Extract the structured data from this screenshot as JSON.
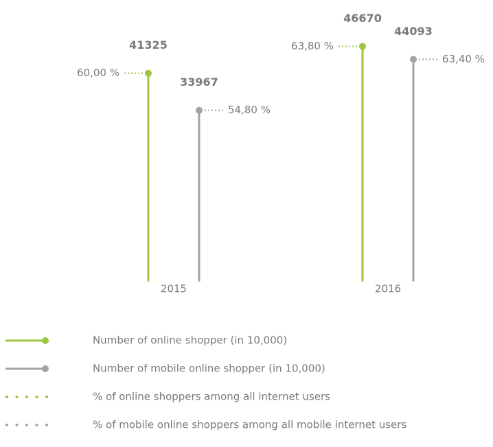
{
  "chart_data": {
    "type": "lollipop",
    "categories": [
      "2015",
      "2016"
    ],
    "series": [
      {
        "name": "Number of online shopper (in 10,000)",
        "color": "#9ec544",
        "values": [
          41325,
          46670
        ]
      },
      {
        "name": "Number of mobile online shopper (in 10,000)",
        "color": "#a3a3a3",
        "values": [
          33967,
          44093
        ]
      },
      {
        "name": "% of online shoppers among all internet users",
        "color": "#9ec544",
        "style": "dotted",
        "values": [
          60,
          63.8
        ],
        "value_labels": [
          "60,00 %",
          "63,80 %"
        ]
      },
      {
        "name": "% of mobile online shoppers among all mobile internet users",
        "color": "#a3a3a3",
        "style": "dotted",
        "values": [
          54.8,
          63.4
        ],
        "value_labels": [
          "54,80 %",
          "63,40 %"
        ]
      }
    ]
  }
}
